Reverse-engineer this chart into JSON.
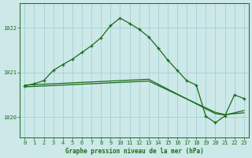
{
  "title": "Graphe pression niveau de la mer (hPa)",
  "bg_color": "#cce8e8",
  "grid_color": "#aad4d4",
  "line_color": "#1a6b1a",
  "xlim": [
    -0.5,
    23.5
  ],
  "ylim": [
    1019.55,
    1022.55
  ],
  "yticks": [
    1020,
    1021,
    1022
  ],
  "xticks": [
    0,
    1,
    2,
    3,
    4,
    5,
    6,
    7,
    8,
    9,
    10,
    11,
    12,
    13,
    14,
    15,
    16,
    17,
    18,
    19,
    20,
    21,
    22,
    23
  ],
  "line_flat1_x": [
    0,
    1,
    2,
    3,
    4,
    5,
    6,
    7,
    8,
    9,
    10,
    11,
    12,
    13,
    14,
    15,
    16,
    17,
    18,
    19,
    20,
    21,
    22,
    23
  ],
  "line_flat1_y": [
    1020.72,
    1020.73,
    1020.74,
    1020.75,
    1020.76,
    1020.77,
    1020.78,
    1020.79,
    1020.8,
    1020.81,
    1020.82,
    1020.83,
    1020.84,
    1020.85,
    1020.74,
    1020.63,
    1020.52,
    1020.41,
    1020.3,
    1020.19,
    1020.08,
    1020.05,
    1020.1,
    1020.15
  ],
  "line_flat2_x": [
    0,
    1,
    2,
    3,
    4,
    5,
    6,
    7,
    8,
    9,
    10,
    11,
    12,
    13,
    14,
    15,
    16,
    17,
    18,
    19,
    20,
    21,
    22,
    23
  ],
  "line_flat2_y": [
    1020.68,
    1020.69,
    1020.7,
    1020.71,
    1020.72,
    1020.73,
    1020.74,
    1020.75,
    1020.76,
    1020.77,
    1020.78,
    1020.79,
    1020.8,
    1020.81,
    1020.71,
    1020.61,
    1020.51,
    1020.41,
    1020.31,
    1020.21,
    1020.11,
    1020.06,
    1020.08,
    1020.1
  ],
  "line_main_x": [
    0,
    1,
    2,
    3,
    4,
    5,
    6,
    7,
    8,
    9,
    10,
    11,
    12,
    13,
    14,
    15,
    16,
    17,
    18,
    19,
    20,
    21,
    22,
    23
  ],
  "line_main_y": [
    1020.7,
    1020.75,
    1020.82,
    1021.05,
    1021.18,
    1021.3,
    1021.45,
    1021.6,
    1021.78,
    1022.05,
    1022.22,
    1022.1,
    1021.97,
    1021.8,
    1021.55,
    1021.28,
    1021.05,
    1020.82,
    1020.72,
    1020.02,
    1019.88,
    1020.03,
    1020.5,
    1020.42
  ]
}
